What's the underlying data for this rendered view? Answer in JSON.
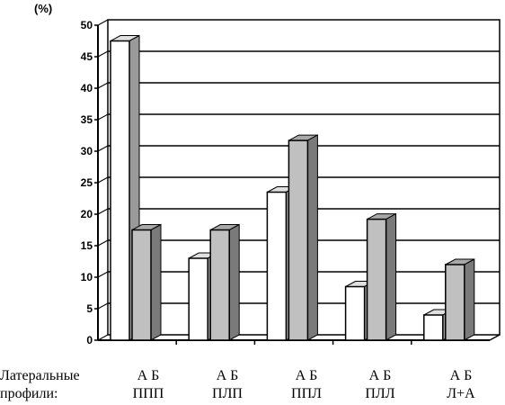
{
  "chart_data": {
    "type": "bar",
    "unit_label": "(%)",
    "ylim": [
      0,
      50
    ],
    "yticks": [
      0,
      5,
      10,
      15,
      20,
      25,
      30,
      35,
      40,
      45,
      50
    ],
    "grid": true,
    "categories": [
      "ППП",
      "ПЛП",
      "ППЛ",
      "ПЛЛ",
      "Л+А"
    ],
    "series": [
      {
        "name": "А",
        "values": [
          47.5,
          13,
          23.5,
          8.5,
          4
        ],
        "color": "#ffffff"
      },
      {
        "name": "Б",
        "values": [
          17.5,
          17.5,
          31.7,
          19.2,
          12
        ],
        "color": "#c0c0c0"
      }
    ]
  },
  "footer": {
    "row_label_line1": "Латеральные",
    "row_label_line2": "профили:"
  }
}
